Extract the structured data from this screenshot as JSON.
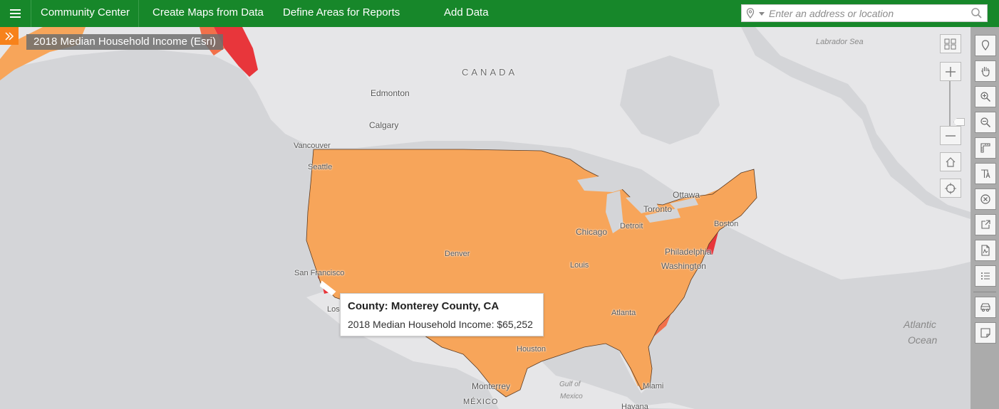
{
  "header": {
    "app_title": "Community Center",
    "nav": [
      "Create Maps from Data",
      "Define Areas for Reports",
      "Add Data"
    ],
    "search_placeholder": "Enter an address or location"
  },
  "map": {
    "layer_title": "2018 Median Household Income (Esri)",
    "labels": {
      "canada": "CANADA",
      "edmonton": "Edmonton",
      "calgary": "Calgary",
      "vancouver": "Vancouver",
      "seattle": "Seattle",
      "ottawa": "Ottawa",
      "toronto": "Toronto",
      "chicago": "Chicago",
      "detroit": "Detroit",
      "boston": "Boston",
      "philadelphia": "Philadelphia",
      "washington": "Washington",
      "denver": "Denver",
      "san_francisco": "San Francisco",
      "los_angeles": "Los",
      "atlanta": "Atlanta",
      "houston": "Houston",
      "st_louis": "Louis",
      "miami": "Miami",
      "monterrey": "Monterrey",
      "mexico": "MÉXICO",
      "havana": "Havana",
      "labrador_sea": "Labrador Sea",
      "atlantic_1": "Atlantic",
      "atlantic_2": "Ocean",
      "gulf_1": "Gulf of",
      "gulf_2": "Mexico"
    },
    "legend_colors": {
      "highest": "#e8363b",
      "high": "#f2704a",
      "mid": "#f7a55a",
      "low": "#fbd27e",
      "lowest": "#fbf6c4",
      "land": "#e6e6e8",
      "water": "#d4d5d8"
    }
  },
  "popup": {
    "title": "County: Monterey County, CA",
    "field_label": "2018 Median Household Income:",
    "field_value": "$65,252"
  }
}
